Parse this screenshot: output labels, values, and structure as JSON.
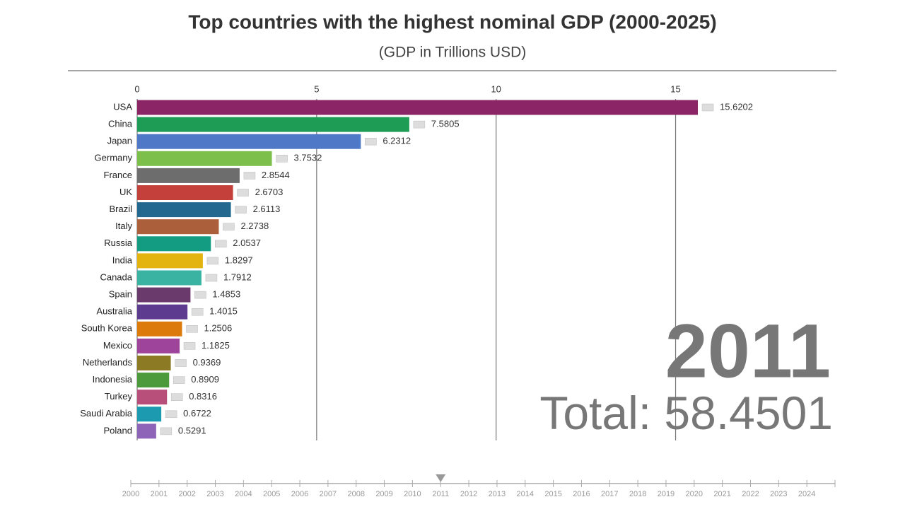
{
  "chart_data": {
    "type": "bar",
    "title": "Top countries with the highest nominal GDP (2000-2025)",
    "subtitle": "(GDP in Trillions USD)",
    "categories": [
      "USA",
      "China",
      "Japan",
      "Germany",
      "France",
      "UK",
      "Brazil",
      "Italy",
      "Russia",
      "India",
      "Canada",
      "Spain",
      "Australia",
      "South Korea",
      "Mexico",
      "Netherlands",
      "Indonesia",
      "Turkey",
      "Saudi Arabia",
      "Poland"
    ],
    "values": [
      15.6202,
      7.5805,
      6.2312,
      3.7532,
      2.8544,
      2.6703,
      2.6113,
      2.2738,
      2.0537,
      1.8297,
      1.7912,
      1.4853,
      1.4015,
      1.2506,
      1.1825,
      0.9369,
      0.8909,
      0.8316,
      0.6722,
      0.5291
    ],
    "colors": [
      "#8b2566",
      "#1e9b55",
      "#4f79c6",
      "#7cc04b",
      "#6d6d6d",
      "#c4413b",
      "#23688f",
      "#ab5f3a",
      "#149c82",
      "#e3b40f",
      "#3bb3a2",
      "#6a3a6d",
      "#5d3b8e",
      "#dc7a0c",
      "#9e449a",
      "#8d7a24",
      "#4c9a3b",
      "#b84e7a",
      "#1b9ab0",
      "#8e64b8"
    ],
    "xlim": [
      0,
      19.5
    ],
    "xticks": [
      0,
      5,
      10,
      15
    ],
    "grid": true,
    "year": 2011,
    "total_label": "Total:",
    "total": 58.4501,
    "timeline": {
      "lim": [
        2000,
        2025
      ],
      "ticks": [
        2000,
        2001,
        2002,
        2003,
        2004,
        2005,
        2006,
        2007,
        2008,
        2009,
        2010,
        2011,
        2012,
        2013,
        2014,
        2015,
        2016,
        2017,
        2018,
        2019,
        2020,
        2021,
        2022,
        2023,
        2024
      ]
    }
  }
}
